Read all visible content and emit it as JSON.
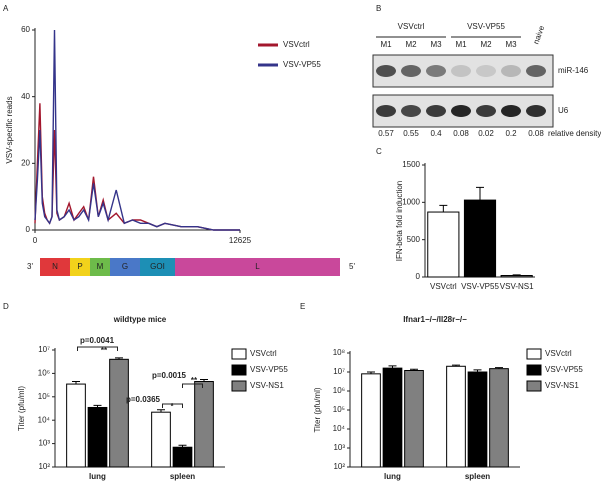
{
  "chart_data": [
    {
      "type": "line",
      "panel": "A",
      "ylabel": "VSV-specific reads",
      "x": [
        0,
        150,
        300,
        450,
        600,
        750,
        900,
        1050,
        1200,
        1350,
        1500,
        1800,
        2100,
        2400,
        2700,
        3000,
        3300,
        3600,
        3900,
        4200,
        4500,
        5000,
        5500,
        6000,
        6500,
        7000,
        7500,
        8000,
        9000,
        10000,
        11000,
        12000,
        12625
      ],
      "series": [
        {
          "name": "VSVctrl",
          "color": "#a3172d",
          "values": [
            2,
            20,
            38,
            10,
            5,
            3,
            2,
            4,
            30,
            5,
            3,
            4,
            8,
            3,
            5,
            7,
            3,
            16,
            4,
            9,
            3,
            5,
            2,
            3,
            3,
            2,
            1,
            2,
            1,
            1,
            0,
            0,
            0
          ]
        },
        {
          "name": "VSV-VP55",
          "color": "#34348a",
          "values": [
            3,
            15,
            30,
            8,
            4,
            3,
            2,
            4,
            60,
            6,
            3,
            4,
            6,
            3,
            4,
            6,
            3,
            14,
            4,
            8,
            3,
            12,
            2,
            3,
            2,
            2,
            1,
            2,
            1,
            1,
            0,
            0,
            0
          ]
        }
      ],
      "xlim": [
        0,
        12625
      ],
      "xticks": [
        0,
        12625
      ],
      "ylim": [
        0,
        60
      ],
      "yticks": [
        0,
        20,
        40,
        60
      ],
      "genome": {
        "ends": [
          "3'",
          "5'"
        ],
        "segments": [
          {
            "label": "N",
            "color": "#e0383b"
          },
          {
            "label": "P",
            "color": "#f2d21b"
          },
          {
            "label": "M",
            "color": "#6dbb4a"
          },
          {
            "label": "G",
            "color": "#4a78c8"
          },
          {
            "label": "GOI",
            "color": "#1d8fb5"
          },
          {
            "label": "L",
            "color": "#c9489b"
          }
        ]
      }
    },
    {
      "type": "blot",
      "panel": "B",
      "groups": [
        "VSVctrl",
        "VSV-VP55"
      ],
      "lanes": [
        "M1",
        "M2",
        "M3",
        "M1",
        "M2",
        "M3",
        "naive"
      ],
      "bands": [
        "miR-146",
        "U6"
      ],
      "values": [
        0.57,
        0.55,
        0.4,
        0.08,
        0.02,
        0.2,
        0.08
      ],
      "value_label": "relative density"
    },
    {
      "type": "bar",
      "panel": "C",
      "ylabel": "IFN-beta fold induction",
      "categories": [
        "VSVctrl",
        "VSV-VP55",
        "VSV-NS1"
      ],
      "values": [
        870,
        1030,
        20
      ],
      "errors": [
        90,
        170,
        8
      ],
      "colors": [
        "#ffffff",
        "#000000",
        "#808080"
      ],
      "ylim": [
        0,
        1500
      ],
      "yticks": [
        0,
        500,
        1000,
        1500
      ]
    },
    {
      "type": "bar",
      "panel": "D",
      "title": "wildtype mice",
      "ylabel": "Titer (pfu/ml)",
      "log_scale": true,
      "categories": [
        "lung",
        "spleen"
      ],
      "series": [
        {
          "name": "VSVctrl",
          "color": "#ffffff",
          "values": [
            350000,
            22000
          ],
          "errors": [
            100000,
            6000
          ]
        },
        {
          "name": "VSV-VP55",
          "color": "#000000",
          "values": [
            35000,
            700
          ],
          "errors": [
            8000,
            150
          ]
        },
        {
          "name": "VSV-NS1",
          "color": "#808080",
          "values": [
            4000000,
            450000
          ],
          "errors": [
            600000,
            100000
          ]
        }
      ],
      "ylim": [
        100,
        10000000
      ],
      "yticks": [
        {
          "value": 100,
          "label": "10²"
        },
        {
          "value": 1000,
          "label": "10³"
        },
        {
          "value": 10000,
          "label": "10⁴"
        },
        {
          "value": 100000,
          "label": "10⁵"
        },
        {
          "value": 1000000,
          "label": "10⁶"
        },
        {
          "value": 10000000,
          "label": "10⁷"
        }
      ],
      "annotations": [
        "p=0.0041",
        "**",
        "p=0.0365",
        "*",
        "p=0.0015",
        "**"
      ]
    },
    {
      "type": "bar",
      "panel": "E",
      "title": "Ifnar1−/−/Il28r−/−",
      "ylabel": "Titer (pfu/ml)",
      "log_scale": true,
      "categories": [
        "lung",
        "spleen"
      ],
      "series": [
        {
          "name": "VSVctrl",
          "color": "#ffffff",
          "values": [
            8000000,
            20000000
          ],
          "errors": [
            2000000,
            3000000
          ]
        },
        {
          "name": "VSV-VP55",
          "color": "#000000",
          "values": [
            16000000,
            10000000
          ],
          "errors": [
            5000000,
            3000000
          ]
        },
        {
          "name": "VSV-NS1",
          "color": "#808080",
          "values": [
            12000000,
            15000000
          ],
          "errors": [
            2000000,
            2000000
          ]
        }
      ],
      "ylim": [
        100,
        100000000
      ],
      "yticks": [
        {
          "value": 100,
          "label": "10²"
        },
        {
          "value": 1000,
          "label": "10³"
        },
        {
          "value": 10000,
          "label": "10⁴"
        },
        {
          "value": 100000,
          "label": "10⁵"
        },
        {
          "value": 1000000,
          "label": "10⁶"
        },
        {
          "value": 10000000,
          "label": "10⁷"
        },
        {
          "value": 100000000,
          "label": "10⁸"
        }
      ]
    }
  ]
}
